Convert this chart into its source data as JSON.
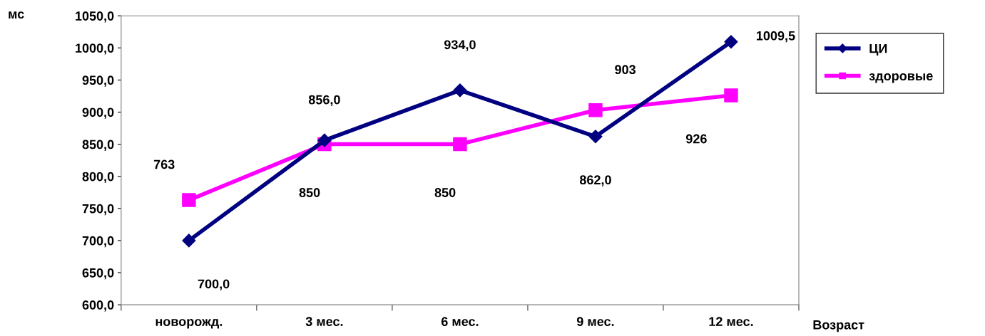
{
  "chart_data": {
    "type": "line",
    "ylabel": "мс",
    "xlabel": "Возраст",
    "categories": [
      "новорожд.",
      "3 мес.",
      "6 мес.",
      "9 мес.",
      "12 мес."
    ],
    "series": [
      {
        "name": "ЦИ",
        "color": "#000080",
        "marker": "diamond",
        "values": [
          700,
          856,
          934,
          862,
          1009.5
        ],
        "value_labels": [
          "700,0",
          "856,0",
          "934,0",
          "862,0",
          "1009,5"
        ]
      },
      {
        "name": "здоровые",
        "color": "#ff00ff",
        "marker": "square",
        "values": [
          763,
          850,
          850,
          903,
          926
        ],
        "value_labels": [
          "763",
          "850",
          "850",
          "903",
          "926"
        ]
      }
    ],
    "ylim": [
      600,
      1050
    ],
    "yticks": [
      {
        "value": 600,
        "label": "600,0"
      },
      {
        "value": 650,
        "label": "650,0"
      },
      {
        "value": 700,
        "label": "700,0"
      },
      {
        "value": 750,
        "label": "750,0"
      },
      {
        "value": 800,
        "label": "800,0"
      },
      {
        "value": 850,
        "label": "850,0"
      },
      {
        "value": 900,
        "label": "900,0"
      },
      {
        "value": 950,
        "label": "950,0"
      },
      {
        "value": 1000,
        "label": "1000,0"
      },
      {
        "value": 1050,
        "label": "1050,0"
      }
    ],
    "grid": false,
    "legend": "right",
    "line_style": "solid"
  }
}
